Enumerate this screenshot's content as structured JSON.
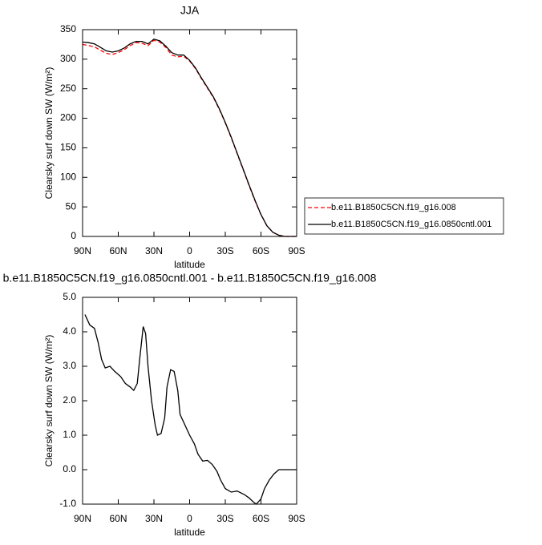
{
  "chart_data": [
    {
      "type": "line",
      "title": "JJA",
      "ylabel": "Clearsky surf down SW (W/m²)",
      "xlabel": "latitude",
      "x": [
        90,
        85,
        80,
        75,
        70,
        65,
        60,
        55,
        50,
        45,
        40,
        35,
        30,
        25,
        20,
        15,
        10,
        5,
        0,
        -5,
        -10,
        -15,
        -20,
        -25,
        -30,
        -35,
        -40,
        -45,
        -50,
        -55,
        -60,
        -65,
        -70,
        -75,
        -80,
        -85,
        -90
      ],
      "series": [
        {
          "name": "b.e11.B1850C5CN.f19_g16.008",
          "color": "#ff0000",
          "dash": true,
          "values": [
            325,
            323,
            321,
            315,
            310,
            308,
            311,
            316,
            323,
            328,
            327,
            323,
            332,
            329,
            320,
            307,
            304,
            305,
            297,
            284,
            267,
            251,
            235,
            215,
            192,
            167,
            140,
            113,
            86,
            60,
            37,
            18,
            7,
            2,
            0,
            0,
            0
          ]
        },
        {
          "name": "b.e11.B1850C5CN.f19_g16.0850cntl.001",
          "color": "#000000",
          "dash": false,
          "values": [
            329,
            328,
            326,
            320,
            314,
            312,
            314,
            319,
            326,
            330,
            330,
            326,
            334,
            331,
            322,
            311,
            307,
            307,
            298,
            285,
            268,
            252,
            236,
            216,
            193,
            168,
            141,
            114,
            87,
            61,
            37,
            18,
            7,
            2,
            0,
            0,
            0
          ]
        }
      ],
      "xlim": [
        90,
        -90
      ],
      "xticks": [
        {
          "value": 90,
          "label": "90N"
        },
        {
          "value": 60,
          "label": "60N"
        },
        {
          "value": 30,
          "label": "30N"
        },
        0,
        {
          "value": -30,
          "label": "30S"
        },
        {
          "value": -60,
          "label": "60S"
        },
        {
          "value": -90,
          "label": "90S"
        }
      ],
      "ylim": [
        0,
        350
      ],
      "yticks": [
        0,
        50,
        100,
        150,
        200,
        250,
        300,
        350
      ],
      "legend": "right"
    },
    {
      "type": "line",
      "title": "b.e11.B1850C5CN.f19_g16.0850cntl.001 - b.e11.B1850C5CN.f19_g16.008",
      "ylabel": "Clearsky surf down SW (W/m²)",
      "xlabel": "latitude",
      "x": [
        88,
        84,
        80,
        77,
        74,
        71,
        67,
        63,
        58,
        54,
        50,
        47,
        44,
        42,
        39,
        37,
        35,
        32,
        29,
        27,
        24,
        21,
        19,
        16,
        13,
        10,
        8,
        4,
        0,
        -4,
        -7,
        -11,
        -15,
        -19,
        -23,
        -26,
        -30,
        -35,
        -40,
        -46,
        -50,
        -54,
        -56,
        -60,
        -63,
        -67,
        -71,
        -75,
        -81,
        -90
      ],
      "values": [
        4.5,
        4.2,
        4.1,
        3.7,
        3.2,
        2.95,
        3.0,
        2.85,
        2.7,
        2.5,
        2.4,
        2.3,
        2.5,
        3.2,
        4.15,
        3.95,
        3.0,
        2.0,
        1.3,
        1.0,
        1.05,
        1.5,
        2.4,
        2.9,
        2.85,
        2.3,
        1.6,
        1.3,
        1.0,
        0.75,
        0.45,
        0.25,
        0.27,
        0.15,
        -0.05,
        -0.3,
        -0.55,
        -0.65,
        -0.62,
        -0.72,
        -0.82,
        -0.95,
        -1.0,
        -0.85,
        -0.55,
        -0.3,
        -0.12,
        0.0,
        0.0,
        0.0
      ],
      "color": "#000000",
      "xlim": [
        90,
        -90
      ],
      "xticks": [
        {
          "value": 90,
          "label": "90N"
        },
        {
          "value": 60,
          "label": "60N"
        },
        {
          "value": 30,
          "label": "30N"
        },
        0,
        {
          "value": -30,
          "label": "30S"
        },
        {
          "value": -60,
          "label": "60S"
        },
        {
          "value": -90,
          "label": "90S"
        }
      ],
      "ylim": [
        -1,
        5
      ],
      "yticks": [
        {
          "value": -1,
          "label": "-1.0"
        },
        {
          "value": 0,
          "label": "0.0"
        },
        {
          "value": 1,
          "label": "1.0"
        },
        {
          "value": 2,
          "label": "2.0"
        },
        {
          "value": 3,
          "label": "3.0"
        },
        {
          "value": 4,
          "label": "4.0"
        },
        {
          "value": 5,
          "label": "5.0"
        }
      ]
    }
  ]
}
